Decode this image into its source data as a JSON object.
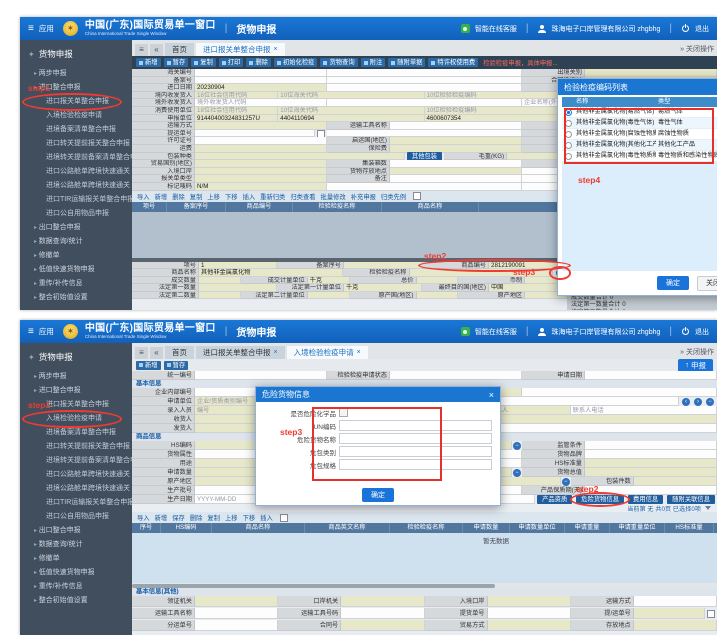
{
  "app": {
    "menu": "应用",
    "title": "中国(广东)国际贸易单一窗口",
    "subtitle": "China International Trade Single Window",
    "module": "货物申报",
    "service": "智能在线客服",
    "company": "珠海电子口岸管理有限公司 zhgbhg",
    "logout": "退出",
    "close_ops": "关闭操作"
  },
  "icons": {
    "menu": "≡",
    "collapse": "«",
    "expand": "»",
    "pipe": "|",
    "close": "×",
    "minus": "−",
    "prev": "‹",
    "next": "›",
    "logo": "✶",
    "up": "↑"
  },
  "annotations": {
    "step1": "step1",
    "step2": "step2",
    "step3": "step3",
    "step4": "step4"
  },
  "sidebar": {
    "root": "货物申报"
  },
  "panelA": {
    "sidebar_items": [
      {
        "label": "两步申报",
        "ind": "ind1"
      },
      {
        "label": "进口整合申报",
        "ind": "ind1"
      },
      {
        "label": "进口报关单整合申报",
        "ind": "ind2",
        "ring": "step1"
      },
      {
        "label": "入境检验检疫申请",
        "ind": "ind2"
      },
      {
        "label": "进境备案清单整合申报",
        "ind": "ind2"
      },
      {
        "label": "进口转关提前报关整合申报",
        "ind": "ind2"
      },
      {
        "label": "进境转关提前备案清单整合申报",
        "ind": "ind2"
      },
      {
        "label": "进口公路舱单跨境快速通关",
        "ind": "ind2"
      },
      {
        "label": "进境公路舱单跨境快速通关",
        "ind": "ind2"
      },
      {
        "label": "进口TIR运输报关单整合申报",
        "ind": "ind2"
      },
      {
        "label": "进口公自用物品申报",
        "ind": "ind2"
      },
      {
        "label": "出口整合申报",
        "ind": "ind1"
      },
      {
        "label": "数据查询/统计",
        "ind": "ind1"
      },
      {
        "label": "修撤单",
        "ind": "ind1"
      },
      {
        "label": "低值快速货物申报",
        "ind": "ind1"
      },
      {
        "label": "重传/补传信息",
        "ind": "ind1"
      },
      {
        "label": "整合初始值设置",
        "ind": "ind1"
      }
    ],
    "tabs": [
      {
        "label": "首页"
      },
      {
        "label": "进口报关单整合申报",
        "close": 1,
        "active": 1
      }
    ],
    "toolbar": [
      "新增",
      "暂存",
      "复制",
      "打印",
      "删除",
      "初始化检疫",
      "货物查询",
      "附注",
      "随附单据",
      "特许权使用费"
    ],
    "notice": "检验检疫申报，具体申报...",
    "form": [
      [
        {
          "l": "海关编号",
          "v": ""
        },
        {
          "l": "",
          "v": ""
        },
        {
          "l": "出境关别",
          "v": "",
          "k": 1
        }
      ],
      [
        {
          "l": "备案号",
          "v": ""
        },
        {
          "l": "",
          "v": ""
        },
        {
          "l": "合同协议号",
          "v": "",
          "k": 1
        }
      ],
      [
        {
          "l": "进口日期",
          "v": "20230904",
          "k": 1
        },
        {
          "l": "",
          "v": ""
        },
        {
          "l": "申报日期",
          "v": "",
          "k": 1
        }
      ],
      [
        {
          "l": "境内收发货人",
          "v": "18位社会信用代码",
          "k": 1,
          "ph": 1
        },
        {
          "l": "",
          "v": "10位海关代码",
          "k": 1,
          "ph": 1
        },
        {
          "l": "",
          "v": "10位检验检疫编码",
          "k": 1,
          "ph": 1
        },
        {
          "l": "",
          "v": "企业名称(中文)",
          "ph": 1
        }
      ],
      [
        {
          "l": "境外收发货人",
          "v": "境外收发货人代码",
          "ph": 1
        },
        {
          "l": "",
          "v": ""
        },
        {
          "l": "",
          "v": "企业名称(外文)",
          "ph": 1
        }
      ],
      [
        {
          "l": "消费使用单位",
          "v": "18位社会信用代码",
          "k": 1,
          "ph": 1
        },
        {
          "l": "",
          "v": "10位海关代码",
          "k": 1,
          "ph": 1
        },
        {
          "l": "",
          "v": "10位检验检疫编码",
          "k": 1,
          "ph": 1
        },
        {
          "l": "",
          "v": "企业名称",
          "ph": 1
        }
      ],
      [
        {
          "l": "申报单位",
          "v": "91440400324831257U",
          "k": 1
        },
        {
          "l": "",
          "v": "4404110694",
          "k": 1
        },
        {
          "l": "",
          "v": "4600607354",
          "k": 1
        },
        {
          "l": "",
          "v": "珠海电子口岸管理有限公司",
          "k": 1
        }
      ],
      [
        {
          "l": "运输方式",
          "v": "",
          "k": 1
        },
        {
          "l": "运输工具名称",
          "v": ""
        },
        {
          "l": "航次号",
          "v": ""
        }
      ],
      [
        {
          "l": "提运单号",
          "v": "",
          "chk": 1
        },
        {
          "l": "",
          "v": ""
        },
        {
          "l": "监管方式",
          "v": "",
          "k": 1
        }
      ],
      [
        {
          "l": "许可证号",
          "v": ""
        },
        {
          "l": "启运国(地区)",
          "v": "",
          "k": 1
        },
        {
          "l": "经停港",
          "v": "",
          "k": 1
        }
      ],
      [
        {
          "l": "运费",
          "v": "",
          "k": 1
        },
        {
          "l": "保险费",
          "v": "",
          "k": 1
        },
        {
          "l": "杂费",
          "v": "",
          "k": 1
        }
      ],
      [
        {
          "l": "包装种类",
          "v": "",
          "k": 1
        },
        {
          "b": "其他包装"
        },
        {
          "l": "毛重(KG)",
          "v": "",
          "k": 1
        }
      ],
      [
        {
          "l": "贸易国别(地区)",
          "v": "",
          "k": 1
        },
        {
          "l": "集装箱数",
          "v": ""
        },
        {
          "l": "随附单证",
          "v": "",
          "k": 1
        }
      ],
      [
        {
          "l": "入境口岸",
          "v": "",
          "k": 1
        },
        {
          "l": "货物存放地点",
          "v": "",
          "k": 1
        },
        {
          "l": "",
          "v": ""
        }
      ],
      [
        {
          "l": "报关单类型",
          "v": "",
          "k": 1
        },
        {
          "l": "备注",
          "v": ""
        },
        {
          "l": "",
          "v": ""
        }
      ],
      [
        {
          "l": "标记唛码",
          "v": "N/M",
          "k": 1
        },
        {
          "l": "",
          "v": ""
        },
        {
          "l": "",
          "v": ""
        }
      ]
    ],
    "goods_toolbar": [
      "导入",
      "新增",
      "删除",
      "复制",
      "上移",
      "下移",
      "插入",
      "重新归类",
      "归类查看",
      "批量修改",
      "补充申报",
      "归类先例"
    ],
    "goods_headers": [
      "项号",
      "备案序号",
      "商品编号",
      "检验检疫名称",
      "商品名称",
      "规格"
    ],
    "detail": [
      [
        {
          "l": "项号",
          "v": "1",
          "k": 1
        },
        {
          "l": "备案序号",
          "v": "",
          "k": 1
        },
        {
          "l": "商品编号",
          "v": "2812190091",
          "k": 1,
          "ring": "step2"
        }
      ],
      [
        {
          "l": "商品名称",
          "v": "其他非金属氯化物",
          "k": 1
        },
        {
          "l": "检验检疫名称",
          "v": "",
          "k": 1
        },
        {
          "ic": "minus",
          "ring": "step3"
        }
      ],
      [
        {
          "l": "成交数量",
          "v": "",
          "k": 1
        },
        {
          "l": "成交计量单位",
          "v": "千克",
          "k": 1
        },
        {
          "l": "总价",
          "v": "",
          "k": 1
        },
        {
          "l": "币制",
          "v": "",
          "k": 1
        }
      ],
      [
        {
          "l": "法定第一数量",
          "v": "",
          "k": 1
        },
        {
          "l": "法定第一计量单位",
          "v": "千克",
          "k": 1
        },
        {
          "l": "最终目的国(地区)",
          "v": "中国",
          "k": 1
        }
      ],
      [
        {
          "l": "法定第二数量",
          "v": "",
          "k": 1
        },
        {
          "l": "法定第二计量单位",
          "v": "",
          "k": 1
        },
        {
          "l": "原产国(地区)",
          "v": "",
          "k": 1
        },
        {
          "l": "原产地区",
          "v": "",
          "k": 1
        }
      ]
    ],
    "side": [
      [
        {
          "l": "关联备案",
          "v": ""
        }
      ],
      [
        {
          "l": "保税/监管场地",
          "v": ""
        }
      ],
      [
        {
          "l": "场地代码",
          "v": ""
        }
      ]
    ],
    "tips": [
      "tips：总价 0",
      "成交数量合计 0",
      "法定第一数量合计 0",
      "法定第二数量合计 0"
    ],
    "dialog": {
      "title": "检验检疫编码列表",
      "headers": [
        "名称",
        "类型",
        "HS代码",
        "HS名称"
      ],
      "rows": [
        {
          "sel": 1,
          "name": "其他非金属氯化物(易燃气体)",
          "type": "易燃气体",
          "hs": "2812190091",
          "hsname": "-"
        },
        {
          "sel": 0,
          "name": "其他非金属氯化物(毒性气体)",
          "type": "毒性气体",
          "hs": "2812190091",
          "hsname": "-"
        },
        {
          "sel": 0,
          "name": "其他非金属氯化物(腐蚀性物质)",
          "type": "腐蚀性物质",
          "hs": "2812190091",
          "hsname": "-"
        },
        {
          "sel": 0,
          "name": "其他非金属氯化物(其他化工产品)",
          "type": "其他化工产品",
          "hs": "2812190091",
          "hsname": "-"
        },
        {
          "sel": 0,
          "name": "其他非金属氯化物(毒性物质和感染性物质)",
          "type": "毒性物质和感染性物质",
          "hs": "2812190091",
          "hsname": "其他非金属氯化物"
        }
      ],
      "ok": "确定",
      "close": "关闭"
    }
  },
  "panelB": {
    "sidebar_items": [
      {
        "label": "两步申报",
        "ind": "ind1"
      },
      {
        "label": "进口整合申报",
        "ind": "ind1"
      },
      {
        "label": "进口报关单整合申报",
        "ind": "ind2"
      },
      {
        "label": "入境检验检疫申请",
        "ind": "ind2",
        "ring": "step1"
      },
      {
        "label": "进境备案清单整合申报",
        "ind": "ind2"
      },
      {
        "label": "进口转关提前报关整合申报",
        "ind": "ind2"
      },
      {
        "label": "进境转关提前备案清单整合申报",
        "ind": "ind2"
      },
      {
        "label": "进口公路舱单跨境快速通关",
        "ind": "ind2"
      },
      {
        "label": "进境公路舱单跨境快速通关",
        "ind": "ind2"
      },
      {
        "label": "进口TIR运输报关单整合申报",
        "ind": "ind2"
      },
      {
        "label": "进口公自用物品申报",
        "ind": "ind2"
      },
      {
        "label": "出口整合申报",
        "ind": "ind1"
      },
      {
        "label": "数据查询/统计",
        "ind": "ind1"
      },
      {
        "label": "修撤单",
        "ind": "ind1"
      },
      {
        "label": "低值快速货物申报",
        "ind": "ind1"
      },
      {
        "label": "重传/补传信息",
        "ind": "ind1"
      },
      {
        "label": "整合初始值设置",
        "ind": "ind1"
      }
    ],
    "tabs": [
      {
        "label": "首页"
      },
      {
        "label": "进口报关单整合申报",
        "close": 1
      },
      {
        "label": "入境检验检疫申请",
        "close": 1,
        "active": 1
      }
    ],
    "toolbar": [
      "新增",
      "暂存"
    ],
    "declare": "申报",
    "head_row": [
      [
        {
          "l": "统一编号",
          "v": ""
        },
        {
          "l": "检验检疫申请状态",
          "v": ""
        },
        {
          "l": "申请日期",
          "v": ""
        }
      ]
    ],
    "sec_basic": "基本信息",
    "basic": [
      [
        {
          "l": "企业内部编号",
          "v": ""
        },
        {
          "l": "检验检疫类别",
          "v": "入境检验检疫",
          "k": 1
        },
        {
          "l": "",
          "v": ""
        }
      ],
      [
        {
          "l": "申请单位",
          "v": "企业/资质类别编号",
          "k": 1,
          "ph": 1
        },
        {
          "l": "资质名称",
          "v": ""
        },
        {
          "ic": "nav"
        }
      ],
      [
        {
          "l": "录入人员",
          "v": "编号",
          "k": 1,
          "ph": 1
        },
        {
          "l": "",
          "v": "姓名",
          "ph": 1
        },
        {
          "l": "联系人",
          "v": "联系人",
          "k": 1,
          "ph": 1
        },
        {
          "l": "",
          "v": "联系人电话",
          "ph": 1
        }
      ],
      [
        {
          "l": "收货人",
          "v": "",
          "k": 1
        }
      ],
      [
        {
          "l": "发货人",
          "v": "",
          "k": 1
        },
        {
          "l": "",
          "v": "发货人地址",
          "ph": 1
        }
      ]
    ],
    "sec_goods": "商品信息",
    "goods": [
      [
        {
          "l": "HS编码",
          "v": "",
          "k": 1
        },
        {
          "l": "货物名称",
          "v": "",
          "k": 1,
          "ic": "minus"
        },
        {
          "l": "监管条件",
          "v": ""
        }
      ],
      [
        {
          "l": "货物属性",
          "v": ""
        },
        {
          "l": "货物型号",
          "v": ""
        },
        {
          "l": "货物品牌",
          "v": ""
        }
      ],
      [
        {
          "l": "用途",
          "v": "",
          "k": 1
        },
        {
          "l": "成分/原料",
          "v": ""
        },
        {
          "l": "HS标准量",
          "v": "",
          "k": 1
        }
      ],
      [
        {
          "l": "申请数量",
          "v": "",
          "k": 1
        },
        {
          "l": "单价",
          "v": "",
          "k": 1,
          "ic": "minus"
        },
        {
          "l": "货物总值",
          "v": "",
          "k": 1
        }
      ],
      [
        {
          "l": "原产地区",
          "v": "",
          "k": 1
        },
        {
          "l": "原产国(地区)",
          "v": "",
          "k": 1
        },
        {
          "l": "包装种类",
          "v": "",
          "k": 1,
          "ic": "minus"
        },
        {
          "l": "包装件数",
          "v": "",
          "k": 1
        }
      ],
      [
        {
          "l": "生产批号",
          "v": ""
        },
        {
          "l": "境外生产企业名称",
          "v": ""
        },
        {
          "l": "产品保质期(天)",
          "v": ""
        }
      ],
      [
        {
          "l": "生产日期",
          "v": "YYYY-MM-DD",
          "ph": 1
        },
        {
          "l": "产品有效期",
          "v": "请选择日期",
          "ph": 1
        },
        {
          "b": "产品资质"
        },
        {
          "b": "危险货物信息",
          "ring": "step2"
        },
        {
          "b": "费用信息"
        },
        {
          "b": "随附关联信息"
        }
      ]
    ],
    "status": "当前第 无 共0页 已选择0项",
    "goods_toolbar": [
      "导入",
      "新增",
      "保存",
      "删除",
      "复制",
      "上移",
      "下移",
      "插入"
    ],
    "goods_headers": [
      "序号",
      "HS编码",
      "商品名称",
      "商品英文名称",
      "检验检疫名称",
      "申请数量",
      "申请数量单位",
      "申请重量",
      "申请重量单位",
      "HS标准量",
      "HS标...",
      "单价"
    ],
    "empty": "暂无数据",
    "sec_other": "基本信息(其他)",
    "other": [
      [
        {
          "l": "领证机关",
          "v": "",
          "k": 1
        },
        {
          "l": "口岸机关",
          "v": "",
          "k": 1
        },
        {
          "l": "入境口岸",
          "v": "",
          "k": 1
        },
        {
          "l": "运输方式",
          "v": ""
        }
      ],
      [
        {
          "l": "运输工具名称",
          "v": ""
        },
        {
          "l": "运输工具号码",
          "v": ""
        },
        {
          "l": "提货单号",
          "v": ""
        },
        {
          "l": "提/运单号",
          "v": "",
          "k": 1,
          "chk": 1
        }
      ],
      [
        {
          "l": "分运单号",
          "v": ""
        },
        {
          "l": "合同号",
          "v": "",
          "k": 1
        },
        {
          "l": "贸易方式",
          "v": "",
          "k": 1
        },
        {
          "l": "存放地点",
          "v": "",
          "k": 1
        }
      ]
    ],
    "dialog": {
      "title": "危险货物信息",
      "fields": [
        {
          "label": "是否危险化学品",
          "chk": 1
        },
        {
          "label": "UN编码"
        },
        {
          "label": "危险货物名称"
        },
        {
          "label": "危包类别"
        },
        {
          "label": "危包规格"
        }
      ],
      "ok": "确定"
    }
  }
}
